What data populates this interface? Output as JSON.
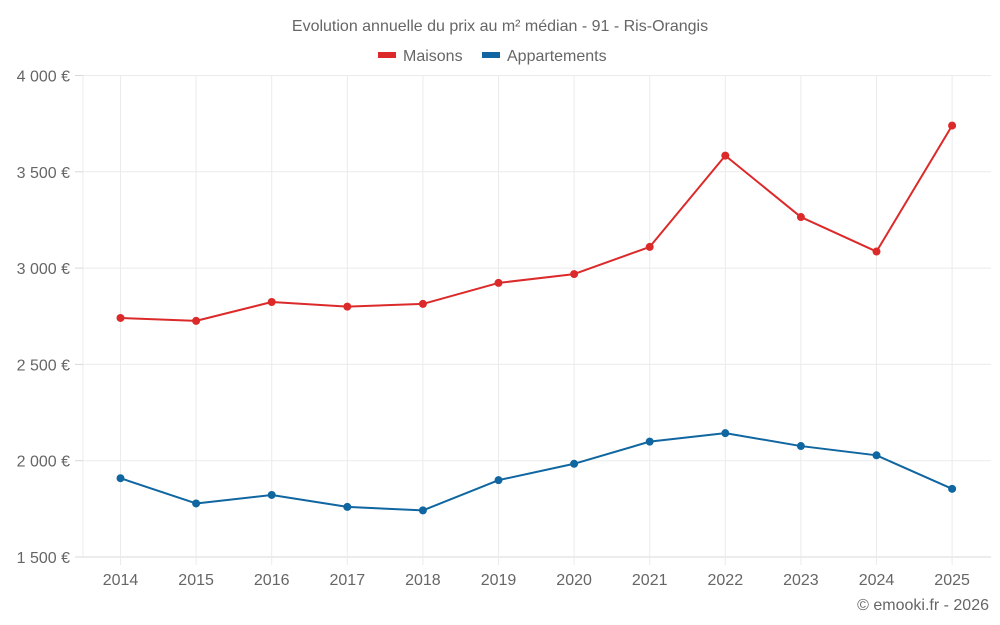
{
  "chart_data": {
    "type": "line",
    "title": "Evolution annuelle du prix au m² médian - 91 - Ris-Orangis",
    "xlabel": "",
    "ylabel": "",
    "x": [
      "2014",
      "2015",
      "2016",
      "2017",
      "2018",
      "2019",
      "2020",
      "2021",
      "2022",
      "2023",
      "2024",
      "2025"
    ],
    "ylim": [
      1500,
      4000
    ],
    "yticks": [
      1500,
      2000,
      2500,
      3000,
      3500,
      4000
    ],
    "ytick_labels": [
      "1 500 €",
      "2 000 €",
      "2 500 €",
      "3 000 €",
      "3 500 €",
      "4 000 €"
    ],
    "grid": true,
    "legend_position": "top-center",
    "series": [
      {
        "name": "Maisons",
        "color": "#dc2a2a",
        "values": [
          2741,
          2726,
          2824,
          2800,
          2814,
          2923,
          2969,
          3110,
          3584,
          3265,
          3086,
          3740
        ]
      },
      {
        "name": "Appartements",
        "color": "#0f66a0",
        "values": [
          1909,
          1778,
          1822,
          1760,
          1742,
          1899,
          1984,
          2099,
          2143,
          2076,
          2028,
          1854
        ]
      }
    ],
    "credit": "© emooki.fr - 2026"
  }
}
